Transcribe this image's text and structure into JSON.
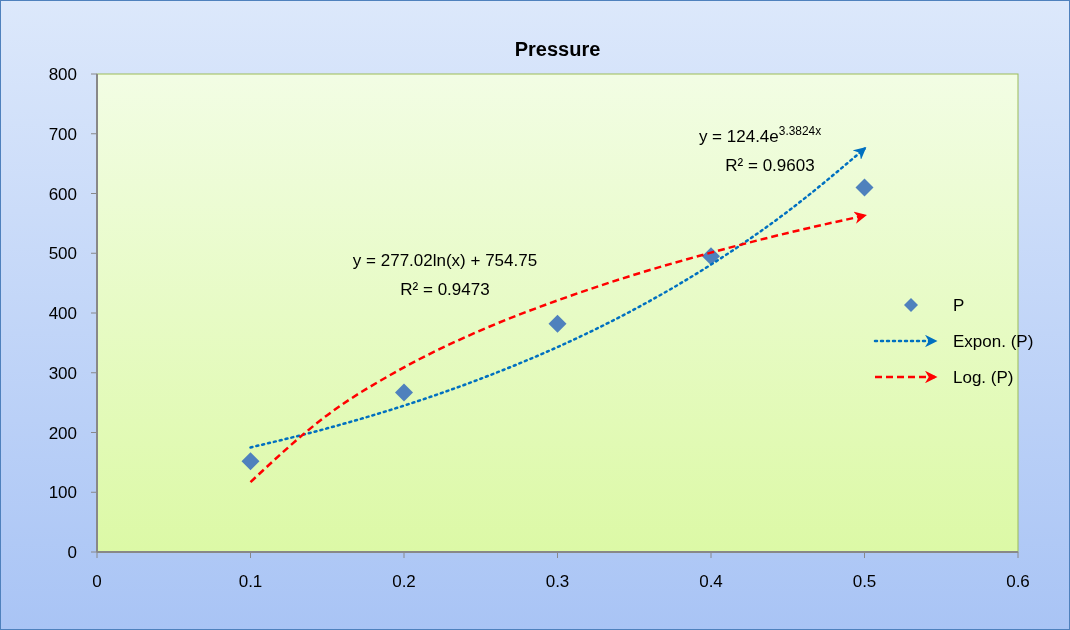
{
  "chart_data": {
    "type": "scatter",
    "title": "Pressure",
    "xlim": [
      0,
      0.6
    ],
    "xticks": [
      0,
      0.1,
      0.2,
      0.3,
      0.4,
      0.5,
      0.6
    ],
    "ylim": [
      0,
      800
    ],
    "yticks": [
      0,
      100,
      200,
      300,
      400,
      500,
      600,
      700,
      800
    ],
    "grid": false,
    "legend": "right",
    "series": [
      {
        "name": "P",
        "color": "#4f81bd",
        "marker": "diamond",
        "x": [
          0.1,
          0.2,
          0.3,
          0.4,
          0.5
        ],
        "values": [
          152,
          267,
          382,
          495,
          610
        ]
      },
      {
        "name": "Expon. (P)",
        "type": "line",
        "color": "#0070c0",
        "marker": "none",
        "line_style": "dotted",
        "x": [
          0.1,
          0.15,
          0.2,
          0.25,
          0.3,
          0.35,
          0.4,
          0.45,
          0.5
        ],
        "values": [
          175,
          207,
          245,
          290,
          343,
          406,
          481,
          570,
          675
        ]
      },
      {
        "name": "Log. (P)",
        "type": "line",
        "color": "#ff0000",
        "marker": "none",
        "line_style": "dashed",
        "x": [
          0.1,
          0.15,
          0.2,
          0.25,
          0.3,
          0.35,
          0.4,
          0.45,
          0.5
        ],
        "values": [
          117,
          229,
          309,
          371,
          421,
          464,
          501,
          534,
          563
        ]
      }
    ],
    "annotations": [
      "y = 277.02ln(x) + 754.75",
      "R² = 0.9473",
      "y = 124.4e$^{3.3824x}$",
      "R² = 0.9603"
    ]
  }
}
